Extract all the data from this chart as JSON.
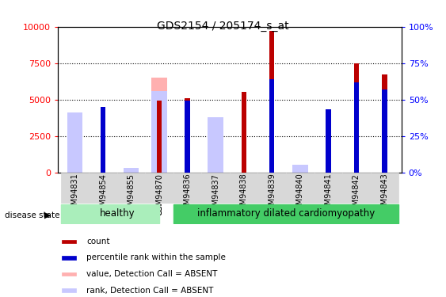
{
  "title": "GDS2154 / 205174_s_at",
  "samples": [
    "GSM94831",
    "GSM94854",
    "GSM94855",
    "GSM94870",
    "GSM94836",
    "GSM94837",
    "GSM94838",
    "GSM94839",
    "GSM94840",
    "GSM94841",
    "GSM94842",
    "GSM94843"
  ],
  "n_healthy": 4,
  "count_values": [
    null,
    4200,
    null,
    4900,
    5100,
    null,
    5500,
    9700,
    null,
    3700,
    7500,
    6700
  ],
  "percentile_values": [
    null,
    45,
    null,
    null,
    49,
    null,
    null,
    64,
    null,
    43,
    62,
    57
  ],
  "absent_value_values": [
    3700,
    null,
    null,
    6500,
    null,
    3100,
    null,
    null,
    null,
    null,
    null,
    null
  ],
  "absent_rank_values": [
    41,
    null,
    3,
    56,
    null,
    38,
    null,
    null,
    5,
    null,
    null,
    null
  ],
  "count_color": "#bb0000",
  "percentile_color": "#0000cc",
  "absent_value_color": "#ffb0b0",
  "absent_rank_color": "#c8c8ff",
  "left_ylim": [
    0,
    10000
  ],
  "right_ylim": [
    0,
    100
  ],
  "left_yticks": [
    0,
    2500,
    5000,
    7500,
    10000
  ],
  "right_yticks": [
    0,
    25,
    50,
    75,
    100
  ],
  "disease_state_label": "disease state",
  "healthy_color": "#aaeebb",
  "idc_color": "#44cc66",
  "healthy_label": "healthy",
  "idc_label": "inflammatory dilated cardiomyopathy",
  "legend_items": [
    {
      "label": "count",
      "color": "#bb0000"
    },
    {
      "label": "percentile rank within the sample",
      "color": "#0000cc"
    },
    {
      "label": "value, Detection Call = ABSENT",
      "color": "#ffb0b0"
    },
    {
      "label": "rank, Detection Call = ABSENT",
      "color": "#c8c8ff"
    }
  ]
}
